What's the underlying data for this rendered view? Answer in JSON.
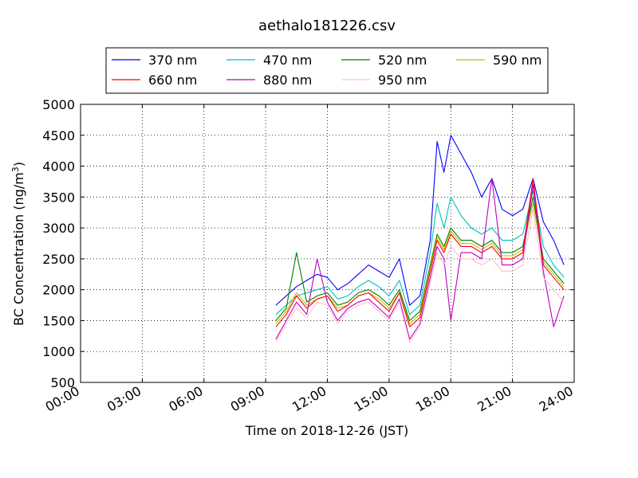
{
  "chart_data": {
    "type": "line",
    "title": "aethalo181226.csv",
    "xlabel": "Time on 2018-12-26 (JST)",
    "ylabel_main": "BC Concentration (ng/m",
    "ylabel_sup": "3",
    "ylabel_close": ")",
    "xlim": [
      "00:00",
      "24:00"
    ],
    "ylim": [
      500,
      5000
    ],
    "x_ticks": [
      "00:00",
      "03:00",
      "06:00",
      "09:00",
      "12:00",
      "15:00",
      "18:00",
      "21:00",
      "24:00"
    ],
    "y_ticks": [
      "500",
      "1000",
      "1500",
      "2000",
      "2500",
      "3000",
      "3500",
      "4000",
      "4500",
      "5000"
    ],
    "grid": true,
    "legend_placement": "top-center",
    "series": [
      {
        "name": "370 nm",
        "color": "#0000ff",
        "x": [
          "09:30",
          "10:00",
          "10:30",
          "11:00",
          "11:30",
          "12:00",
          "12:30",
          "13:00",
          "13:30",
          "14:00",
          "14:30",
          "15:00",
          "15:30",
          "16:00",
          "16:30",
          "17:00",
          "17:20",
          "17:40",
          "18:00",
          "18:30",
          "19:00",
          "19:30",
          "20:00",
          "20:30",
          "21:00",
          "21:30",
          "22:00",
          "22:30",
          "23:00",
          "23:30"
        ],
        "values": [
          1750,
          1900,
          2050,
          2150,
          2250,
          2200,
          2000,
          2100,
          2250,
          2400,
          2300,
          2200,
          2500,
          1750,
          1900,
          2800,
          4400,
          3900,
          4500,
          4200,
          3900,
          3500,
          3800,
          3300,
          3200,
          3300,
          3800,
          3100,
          2800,
          2400
        ]
      },
      {
        "name": "470 nm",
        "color": "#00bfbf",
        "x": [
          "09:30",
          "10:00",
          "10:30",
          "11:00",
          "11:30",
          "12:00",
          "12:30",
          "13:00",
          "13:30",
          "14:00",
          "14:30",
          "15:00",
          "15:30",
          "16:00",
          "16:30",
          "17:00",
          "17:20",
          "17:40",
          "18:00",
          "18:30",
          "19:00",
          "19:30",
          "20:00",
          "20:30",
          "21:00",
          "21:30",
          "22:00",
          "22:30",
          "23:00",
          "23:30"
        ],
        "values": [
          1600,
          1750,
          1900,
          1950,
          2000,
          2050,
          1850,
          1900,
          2050,
          2150,
          2050,
          1900,
          2150,
          1600,
          1750,
          2600,
          3400,
          3000,
          3500,
          3200,
          3000,
          2900,
          3000,
          2800,
          2800,
          2900,
          3600,
          2700,
          2400,
          2200
        ]
      },
      {
        "name": "520 nm",
        "color": "#008000",
        "x": [
          "09:30",
          "10:00",
          "10:30",
          "11:00",
          "11:30",
          "12:00",
          "12:30",
          "13:00",
          "13:30",
          "14:00",
          "14:30",
          "15:00",
          "15:30",
          "16:00",
          "16:30",
          "17:00",
          "17:20",
          "17:40",
          "18:00",
          "18:30",
          "19:00",
          "19:30",
          "20:00",
          "20:30",
          "21:00",
          "21:30",
          "22:00",
          "22:30",
          "23:00",
          "23:30"
        ],
        "values": [
          1500,
          1700,
          2600,
          1800,
          1900,
          1950,
          1750,
          1800,
          1950,
          2000,
          1900,
          1750,
          2000,
          1500,
          1650,
          2400,
          2900,
          2700,
          3000,
          2800,
          2800,
          2700,
          2800,
          2600,
          2600,
          2700,
          3500,
          2500,
          2300,
          2100
        ]
      },
      {
        "name": "590 nm",
        "color": "#bfbf00",
        "x": [
          "09:30",
          "10:00",
          "10:30",
          "11:00",
          "11:30",
          "12:00",
          "12:30",
          "13:00",
          "13:30",
          "14:00",
          "14:30",
          "15:00",
          "15:30",
          "16:00",
          "16:30",
          "17:00",
          "17:20",
          "17:40",
          "18:00",
          "18:30",
          "19:00",
          "19:30",
          "20:00",
          "20:30",
          "21:00",
          "21:30",
          "22:00",
          "22:30",
          "23:00",
          "23:30"
        ],
        "values": [
          1450,
          1650,
          1950,
          1750,
          1850,
          1900,
          1700,
          1750,
          1900,
          1950,
          1850,
          1700,
          1950,
          1450,
          1600,
          2350,
          2850,
          2650,
          2950,
          2750,
          2750,
          2650,
          2750,
          2550,
          2550,
          2650,
          3400,
          2450,
          2250,
          2050
        ]
      },
      {
        "name": "660 nm",
        "color": "#ff0000",
        "x": [
          "09:30",
          "10:00",
          "10:30",
          "11:00",
          "11:30",
          "12:00",
          "12:30",
          "13:00",
          "13:30",
          "14:00",
          "14:30",
          "15:00",
          "15:30",
          "16:00",
          "16:30",
          "17:00",
          "17:20",
          "17:40",
          "18:00",
          "18:30",
          "19:00",
          "19:30",
          "20:00",
          "20:30",
          "21:00",
          "21:30",
          "22:00",
          "22:30",
          "23:00",
          "23:30"
        ],
        "values": [
          1400,
          1600,
          1900,
          1700,
          1850,
          1900,
          1650,
          1750,
          1900,
          1950,
          1800,
          1650,
          1950,
          1400,
          1550,
          2300,
          2800,
          2600,
          2900,
          2700,
          2700,
          2600,
          2700,
          2500,
          2500,
          2600,
          3800,
          2400,
          2200,
          2000
        ]
      },
      {
        "name": "880 nm",
        "color": "#bf00bf",
        "x": [
          "09:30",
          "10:00",
          "10:30",
          "11:00",
          "11:30",
          "12:00",
          "12:30",
          "13:00",
          "13:30",
          "14:00",
          "14:30",
          "15:00",
          "15:30",
          "16:00",
          "16:30",
          "17:00",
          "17:20",
          "17:40",
          "18:00",
          "18:30",
          "19:00",
          "19:30",
          "20:00",
          "20:30",
          "21:00",
          "21:30",
          "22:00",
          "22:30",
          "23:00",
          "23:30"
        ],
        "values": [
          1200,
          1500,
          1800,
          1600,
          2500,
          1800,
          1500,
          1700,
          1800,
          1850,
          1700,
          1550,
          1850,
          1200,
          1450,
          2200,
          2700,
          2500,
          1500,
          2600,
          2600,
          2500,
          3800,
          2400,
          2400,
          2500,
          3700,
          2300,
          1400,
          1900
        ]
      },
      {
        "name": "950 nm",
        "color": "#ffc0cb",
        "x": [
          "09:30",
          "10:00",
          "10:30",
          "11:00",
          "11:30",
          "12:00",
          "12:30",
          "13:00",
          "13:30",
          "14:00",
          "14:30",
          "15:00",
          "15:30",
          "16:00",
          "16:30",
          "17:00",
          "17:20",
          "17:40",
          "18:00",
          "18:30",
          "19:00",
          "19:30",
          "20:00",
          "20:30",
          "21:00",
          "21:30",
          "22:00",
          "22:30",
          "23:00",
          "23:30"
        ],
        "values": [
          1150,
          1450,
          1700,
          1550,
          1800,
          1750,
          1450,
          1650,
          1750,
          1800,
          1650,
          1500,
          1800,
          1150,
          1400,
          2100,
          2600,
          2400,
          2700,
          2500,
          2500,
          2400,
          2500,
          2300,
          2300,
          2400,
          3300,
          2200,
          2000,
          1800
        ]
      }
    ]
  }
}
